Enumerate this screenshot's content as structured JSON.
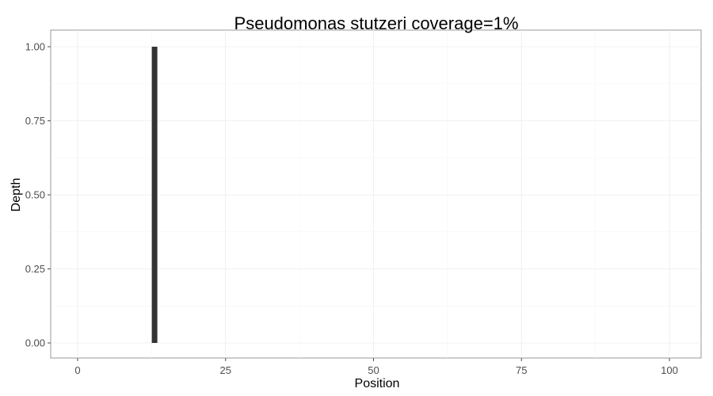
{
  "chart_data": {
    "type": "bar",
    "title": "Pseudomonas stutzeri coverage=1%",
    "xlabel": "Position",
    "ylabel": "Depth",
    "xlim": [
      0,
      100
    ],
    "ylim": [
      0,
      1
    ],
    "x_ticks": [
      0,
      25,
      50,
      75,
      100
    ],
    "x_tick_labels": [
      "0",
      "25",
      "50",
      "75",
      "100"
    ],
    "y_ticks": [
      0,
      0.25,
      0.5,
      0.75,
      1
    ],
    "y_tick_labels": [
      "0.00",
      "0.25",
      "0.50",
      "0.75",
      "1.00"
    ],
    "grid": true,
    "legend": "none",
    "bar_color": "#333333",
    "points": [
      {
        "x": 13,
        "y": 1
      }
    ]
  }
}
